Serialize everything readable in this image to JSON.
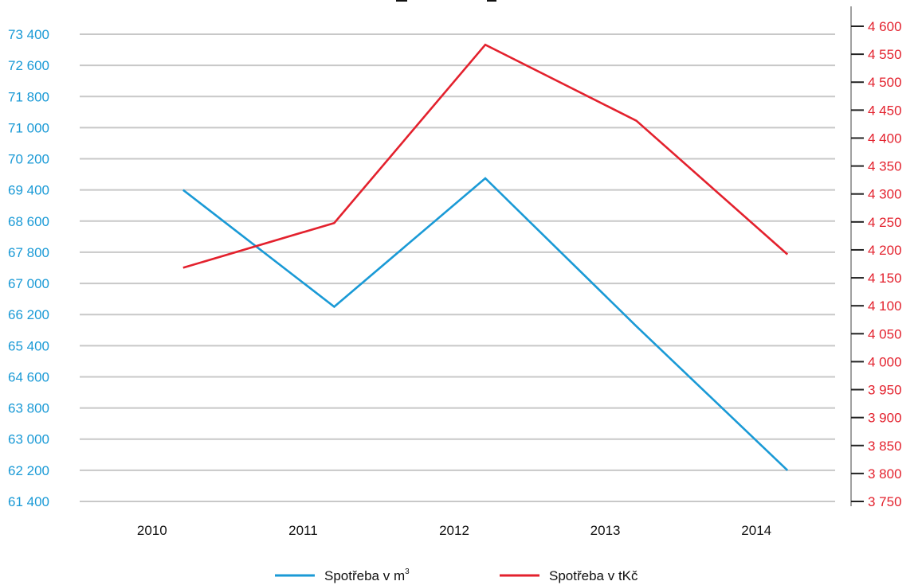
{
  "chart_data": {
    "type": "line",
    "title": "",
    "categories": [
      "2010",
      "2011",
      "2012",
      "2013",
      "2014"
    ],
    "series": [
      {
        "name": "Spotřeba v m",
        "name_superscript": "3",
        "axis": "left",
        "color": "#1a9ad6",
        "values": [
          69400,
          66400,
          69700,
          65900,
          62200
        ]
      },
      {
        "name": "Spotřeba v tKč",
        "axis": "right",
        "color": "#e3212d",
        "values": [
          4168,
          4248,
          4567,
          4431,
          4192
        ]
      }
    ],
    "left_axis": {
      "ylim": [
        61400,
        73400
      ],
      "ticks": [
        "61 400",
        "62 200",
        "63 000",
        "63 800",
        "64 600",
        "65 400",
        "66 200",
        "67 000",
        "67 800",
        "68 600",
        "69 400",
        "70 200",
        "71 000",
        "71 800",
        "72 600",
        "73 400"
      ],
      "tick_values": [
        61400,
        62200,
        63000,
        63800,
        64600,
        65400,
        66200,
        67000,
        67800,
        68600,
        69400,
        70200,
        71000,
        71800,
        72600,
        73400
      ],
      "color": "#1a9ad6"
    },
    "right_axis": {
      "ylim": [
        3750,
        4600
      ],
      "ticks": [
        "3 750",
        "3 800",
        "3 850",
        "3 900",
        "3 950",
        "4 000",
        "4 050",
        "4 100",
        "4 150",
        "4 200",
        "4 250",
        "4 300",
        "4 350",
        "4 400",
        "4 450",
        "4 500",
        "4 550",
        "4 600"
      ],
      "tick_values": [
        3750,
        3800,
        3850,
        3900,
        3950,
        4000,
        4050,
        4100,
        4150,
        4200,
        4250,
        4300,
        4350,
        4400,
        4450,
        4500,
        4550,
        4600
      ],
      "color": "#e3212d"
    },
    "grid": true,
    "legend_position": "bottom"
  }
}
